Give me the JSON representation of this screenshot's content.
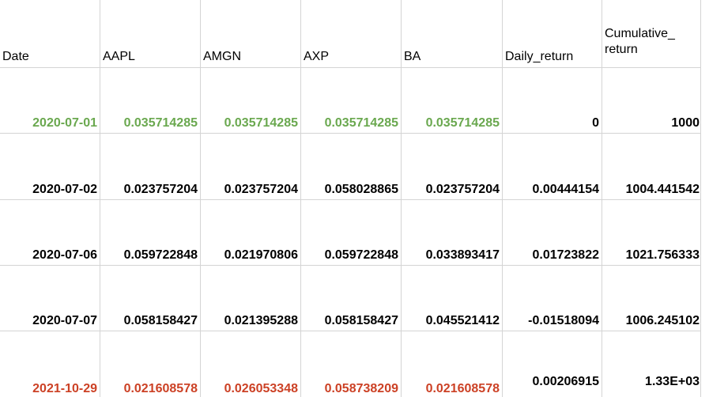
{
  "headers": [
    "Date",
    "AAPL",
    "AMGN",
    "AXP",
    "BA",
    "Daily_return",
    "Cumulative_ return"
  ],
  "rows": [
    {
      "style": "green",
      "cells": [
        "2020-07-01",
        "0.035714285",
        "0.035714285",
        "0.035714285",
        "0.035714285",
        "0",
        "1000"
      ]
    },
    {
      "style": "normal",
      "cells": [
        "2020-07-02",
        "0.023757204",
        "0.023757204",
        "0.058028865",
        "0.023757204",
        "0.00444154",
        "1004.441542"
      ]
    },
    {
      "style": "normal",
      "cells": [
        "2020-07-06",
        "0.059722848",
        "0.021970806",
        "0.059722848",
        "0.033893417",
        "0.01723822",
        "1021.756333"
      ]
    },
    {
      "style": "normal",
      "cells": [
        "2020-07-07",
        "0.058158427",
        "0.021395288",
        "0.058158427",
        "0.045521412",
        "-0.01518094",
        "1006.245102"
      ]
    },
    {
      "style": "red",
      "cells": [
        "2021-10-29",
        "0.021608578",
        "0.026053348",
        "0.058738209",
        "0.021608578",
        "0.00206915",
        "1.33E+03"
      ]
    }
  ],
  "colors": {
    "gridline": "#d4d4d4",
    "first_row_text": "#6aa84f",
    "last_row_text": "#cc4125",
    "default_text": "#000000"
  }
}
